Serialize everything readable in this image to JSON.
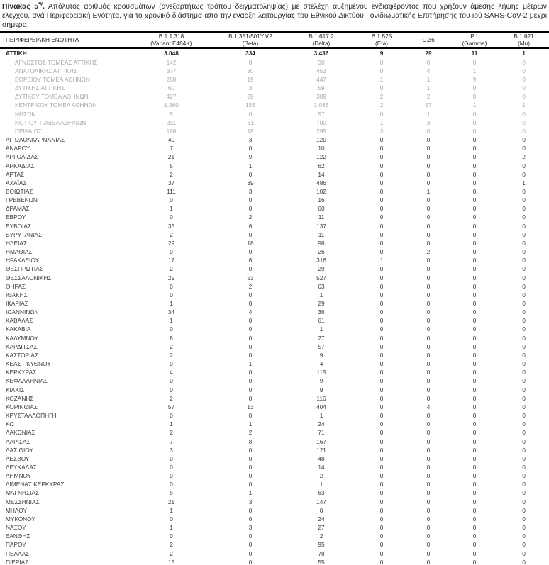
{
  "title": {
    "bold": "Πίνακας 5",
    "sup": "*¥",
    "dot": ".",
    "rest": " Απόλυτος αριθμός κρουσμάτων (ανεξαρτήτως τρόπου δειγματοληψίας) με στελέχη αυξημένου ενδιαφέροντος που χρήζουν άμεσης λήψης μέτρων ελέγχου, ανά Περιφερειακή Ενότητα, για το χρονικό διάστημα από την έναρξη λειτουργίας του Εθνικού Δικτύου Γονιδιωματικής Επιτήρησης του ιού SARS-CoV-2 μέχρι σήμερα."
  },
  "colors": {
    "border": "#000000",
    "text": "#3d3d3d",
    "bold_text": "#1f1f1f",
    "sub_text": "#a9a9a9"
  },
  "table": {
    "columns": [
      {
        "line1": "ΠΕΡΙΦΕΡΕΙΑΚΗ ΕΝΟΤΗΤΑ",
        "line2": ""
      },
      {
        "line1": "B.1.1.318",
        "line2": "(Variant E484K)"
      },
      {
        "line1": "B.1.351/501Y.V2",
        "line2": "(Beta)"
      },
      {
        "line1": "B.1.617.2",
        "line2": "(Delta)"
      },
      {
        "line1": "B.1.525",
        "line2": "(Eta)"
      },
      {
        "line1": "C.36",
        "line2": ""
      },
      {
        "line1": "P.1",
        "line2": "(Gamma)"
      },
      {
        "line1": "B.1.621",
        "line2": "(Mu)"
      }
    ],
    "rows": [
      {
        "region": "ΑΤΤΙΚΗ",
        "values": [
          "3.048",
          "334",
          "3.436",
          "9",
          "29",
          "11",
          "1"
        ],
        "style": "bold"
      },
      {
        "region": "ΑΓΝΩΣΤΟΣ ΤΟΜΕΑΣ ΑΤΤΙΚΗΣ",
        "values": [
          "142",
          "8",
          "30",
          "0",
          "0",
          "0",
          "0"
        ],
        "style": "sub"
      },
      {
        "region": "ΑΝΑΤΟΛΙΚΗΣ ΑΤΤΙΚΗΣ",
        "values": [
          "377",
          "30",
          "453",
          "0",
          "4",
          "1",
          "0"
        ],
        "style": "sub"
      },
      {
        "region": "ΒΟΡΕΙΟΥ ΤΟΜΕΑ ΑΘΗΝΩΝ",
        "values": [
          "268",
          "19",
          "447",
          "1",
          "1",
          "9",
          "0"
        ],
        "style": "sub"
      },
      {
        "region": "ΔΥΤΙΚΗΣ ΑΤΤΙΚΗΣ",
        "values": [
          "60",
          "3",
          "59",
          "0",
          "1",
          "0",
          "0"
        ],
        "style": "sub"
      },
      {
        "region": "ΔΥΤΙΚΟΥ ΤΟΜΕΑ ΑΘΗΝΩΝ",
        "values": [
          "427",
          "39",
          "309",
          "2",
          "2",
          "0",
          "0"
        ],
        "style": "sub"
      },
      {
        "region": "ΚΕΝΤΡΙΚΟΥ ΤΟΜΕΑ ΑΘΗΝΩΝ",
        "values": [
          "1.260",
          "156",
          "1.086",
          "2",
          "17",
          "1",
          "1"
        ],
        "style": "sub"
      },
      {
        "region": "ΝΗΣΩΝ",
        "values": [
          "5",
          "0",
          "57",
          "0",
          "1",
          "0",
          "0"
        ],
        "style": "sub"
      },
      {
        "region": "ΝΟΤΙΟΥ ΤΟΜΕΑ ΑΘΗΝΩΝ",
        "values": [
          "311",
          "61",
          "700",
          "1",
          "3",
          "0",
          "0"
        ],
        "style": "sub"
      },
      {
        "region": "ΠΕΙΡΑΙΩΣ",
        "values": [
          "198",
          "18",
          "295",
          "3",
          "0",
          "0",
          "0"
        ],
        "style": "sub"
      },
      {
        "region": "ΑΙΤΩΛΟΑΚΑΡΝΑΝΙΑΣ",
        "values": [
          "40",
          "3",
          "120",
          "0",
          "0",
          "0",
          "0"
        ],
        "style": "normal"
      },
      {
        "region": "ΑΝΔΡΟΥ",
        "values": [
          "7",
          "0",
          "10",
          "0",
          "0",
          "0",
          "0"
        ],
        "style": "normal"
      },
      {
        "region": "ΑΡΓΟΛΙΔΑΣ",
        "values": [
          "21",
          "9",
          "122",
          "0",
          "0",
          "0",
          "2"
        ],
        "style": "normal"
      },
      {
        "region": "ΑΡΚΑΔΙΑΣ",
        "values": [
          "5",
          "1",
          "62",
          "0",
          "0",
          "0",
          "0"
        ],
        "style": "normal"
      },
      {
        "region": "ΑΡΤΑΣ",
        "values": [
          "2",
          "0",
          "14",
          "0",
          "0",
          "0",
          "0"
        ],
        "style": "normal"
      },
      {
        "region": "ΑΧΑΪΑΣ",
        "values": [
          "37",
          "39",
          "486",
          "0",
          "0",
          "0",
          "1"
        ],
        "style": "normal"
      },
      {
        "region": "ΒΟΙΩΤΙΑΣ",
        "values": [
          "111",
          "3",
          "102",
          "0",
          "1",
          "0",
          "0"
        ],
        "style": "normal"
      },
      {
        "region": "ΓΡΕΒΕΝΩΝ",
        "values": [
          "0",
          "0",
          "16",
          "0",
          "0",
          "0",
          "0"
        ],
        "style": "normal"
      },
      {
        "region": "ΔΡΑΜΑΣ",
        "values": [
          "1",
          "0",
          "60",
          "0",
          "0",
          "0",
          "0"
        ],
        "style": "normal"
      },
      {
        "region": "ΕΒΡΟΥ",
        "values": [
          "0",
          "2",
          "11",
          "0",
          "0",
          "0",
          "0"
        ],
        "style": "normal"
      },
      {
        "region": "ΕΥΒΟΙΑΣ",
        "values": [
          "35",
          "6",
          "137",
          "0",
          "0",
          "0",
          "0"
        ],
        "style": "normal"
      },
      {
        "region": "ΕΥΡΥΤΑΝΙΑΣ",
        "values": [
          "2",
          "0",
          "11",
          "0",
          "0",
          "0",
          "0"
        ],
        "style": "normal"
      },
      {
        "region": "ΗΛΕΙΑΣ",
        "values": [
          "29",
          "18",
          "96",
          "0",
          "0",
          "0",
          "0"
        ],
        "style": "normal"
      },
      {
        "region": "ΗΜΑΘΙΑΣ",
        "values": [
          "0",
          "0",
          "26",
          "0",
          "2",
          "0",
          "0"
        ],
        "style": "normal"
      },
      {
        "region": "ΗΡΑΚΛΕΙΟΥ",
        "values": [
          "17",
          "6",
          "316",
          "1",
          "0",
          "0",
          "0"
        ],
        "style": "normal"
      },
      {
        "region": "ΘΕΣΠΡΩΤΙΑΣ",
        "values": [
          "2",
          "0",
          "29",
          "0",
          "0",
          "0",
          "0"
        ],
        "style": "normal"
      },
      {
        "region": "ΘΕΣΣΑΛΟΝΙΚΗΣ",
        "values": [
          "29",
          "53",
          "527",
          "0",
          "0",
          "0",
          "0"
        ],
        "style": "normal"
      },
      {
        "region": "ΘΗΡΑΣ",
        "values": [
          "0",
          "2",
          "63",
          "0",
          "0",
          "0",
          "0"
        ],
        "style": "normal"
      },
      {
        "region": "ΙΘΑΚΗΣ",
        "values": [
          "0",
          "0",
          "1",
          "0",
          "0",
          "0",
          "0"
        ],
        "style": "normal"
      },
      {
        "region": "ΙΚΑΡΙΑΣ",
        "values": [
          "1",
          "0",
          "29",
          "0",
          "0",
          "0",
          "0"
        ],
        "style": "normal"
      },
      {
        "region": "ΙΩΑΝΝΙΝΩΝ",
        "values": [
          "34",
          "4",
          "36",
          "0",
          "0",
          "0",
          "0"
        ],
        "style": "normal"
      },
      {
        "region": "ΚΑΒΑΛΑΣ",
        "values": [
          "1",
          "0",
          "61",
          "0",
          "0",
          "0",
          "0"
        ],
        "style": "normal"
      },
      {
        "region": "ΚΑΚΑΒΙΑ",
        "values": [
          "0",
          "0",
          "1",
          "0",
          "0",
          "0",
          "0"
        ],
        "style": "normal"
      },
      {
        "region": "ΚΑΛΥΜΝΟΥ",
        "values": [
          "8",
          "0",
          "27",
          "0",
          "0",
          "0",
          "0"
        ],
        "style": "normal"
      },
      {
        "region": "ΚΑΡΔΙΤΣΑΣ",
        "values": [
          "2",
          "0",
          "57",
          "0",
          "0",
          "0",
          "0"
        ],
        "style": "normal"
      },
      {
        "region": "ΚΑΣΤΟΡΙΑΣ",
        "values": [
          "2",
          "0",
          "9",
          "0",
          "0",
          "0",
          "0"
        ],
        "style": "normal"
      },
      {
        "region": "ΚΕΑΣ - ΚΥΘΝΟΥ",
        "values": [
          "0",
          "1",
          "4",
          "0",
          "0",
          "0",
          "0"
        ],
        "style": "normal"
      },
      {
        "region": "ΚΕΡΚΥΡΑΣ",
        "values": [
          "4",
          "0",
          "115",
          "0",
          "0",
          "0",
          "0"
        ],
        "style": "normal"
      },
      {
        "region": "ΚΕΦΑΛΛΗΝΙΑΣ",
        "values": [
          "0",
          "0",
          "9",
          "0",
          "0",
          "0",
          "0"
        ],
        "style": "normal"
      },
      {
        "region": "ΚΙΛΚΙΣ",
        "values": [
          "0",
          "0",
          "9",
          "0",
          "0",
          "0",
          "0"
        ],
        "style": "normal"
      },
      {
        "region": "ΚΟΖΑΝΗΣ",
        "values": [
          "2",
          "0",
          "116",
          "0",
          "0",
          "0",
          "0"
        ],
        "style": "normal"
      },
      {
        "region": "ΚΟΡΙΝΘΙΑΣ",
        "values": [
          "57",
          "13",
          "404",
          "0",
          "4",
          "0",
          "0"
        ],
        "style": "normal"
      },
      {
        "region": "ΚΡΥΣΤΑΛΛΟΠΗΓΗ",
        "values": [
          "0",
          "0",
          "1",
          "0",
          "0",
          "0",
          "0"
        ],
        "style": "normal"
      },
      {
        "region": "ΚΩ",
        "values": [
          "1",
          "1",
          "24",
          "0",
          "0",
          "0",
          "0"
        ],
        "style": "normal"
      },
      {
        "region": "ΛΑΚΩΝΙΑΣ",
        "values": [
          "2",
          "2",
          "71",
          "0",
          "0",
          "0",
          "0"
        ],
        "style": "normal"
      },
      {
        "region": "ΛΑΡΙΣΑΣ",
        "values": [
          "7",
          "8",
          "167",
          "0",
          "0",
          "0",
          "0"
        ],
        "style": "normal"
      },
      {
        "region": "ΛΑΣΙΘΙΟΥ",
        "values": [
          "3",
          "0",
          "121",
          "0",
          "0",
          "0",
          "0"
        ],
        "style": "normal"
      },
      {
        "region": "ΛΕΣΒΟΥ",
        "values": [
          "0",
          "0",
          "48",
          "0",
          "0",
          "0",
          "0"
        ],
        "style": "normal"
      },
      {
        "region": "ΛΕΥΚΑΔΑΣ",
        "values": [
          "0",
          "0",
          "14",
          "0",
          "0",
          "0",
          "0"
        ],
        "style": "normal"
      },
      {
        "region": "ΛΗΜΝΟΥ",
        "values": [
          "0",
          "0",
          "2",
          "0",
          "0",
          "0",
          "0"
        ],
        "style": "normal"
      },
      {
        "region": "ΛΙΜΕΝΑΣ ΚΕΡΚΥΡΑΣ",
        "values": [
          "0",
          "0",
          "1",
          "0",
          "0",
          "0",
          "0"
        ],
        "style": "normal"
      },
      {
        "region": "ΜΑΓΝΗΣΙΑΣ",
        "values": [
          "5",
          "1",
          "63",
          "0",
          "0",
          "0",
          "0"
        ],
        "style": "normal"
      },
      {
        "region": "ΜΕΣΣΗΝΙΑΣ",
        "values": [
          "21",
          "3",
          "147",
          "0",
          "0",
          "0",
          "0"
        ],
        "style": "normal"
      },
      {
        "region": "ΜΗΛΟΥ",
        "values": [
          "1",
          "0",
          "0",
          "0",
          "0",
          "0",
          "0"
        ],
        "style": "normal"
      },
      {
        "region": "ΜΥΚΟΝΟΥ",
        "values": [
          "0",
          "0",
          "24",
          "0",
          "0",
          "0",
          "0"
        ],
        "style": "normal"
      },
      {
        "region": "ΝΑΞΟΥ",
        "values": [
          "1",
          "3",
          "27",
          "0",
          "0",
          "0",
          "0"
        ],
        "style": "normal"
      },
      {
        "region": "ΞΑΝΘΗΣ",
        "values": [
          "0",
          "0",
          "2",
          "0",
          "0",
          "0",
          "0"
        ],
        "style": "normal"
      },
      {
        "region": "ΠΑΡΟΥ",
        "values": [
          "2",
          "0",
          "95",
          "0",
          "0",
          "0",
          "0"
        ],
        "style": "normal"
      },
      {
        "region": "ΠΕΛΛΑΣ",
        "values": [
          "2",
          "0",
          "78",
          "0",
          "0",
          "0",
          "0"
        ],
        "style": "normal"
      },
      {
        "region": "ΠΙΕΡΙΑΣ",
        "values": [
          "15",
          "0",
          "55",
          "0",
          "0",
          "0",
          "0"
        ],
        "style": "normal"
      }
    ]
  }
}
